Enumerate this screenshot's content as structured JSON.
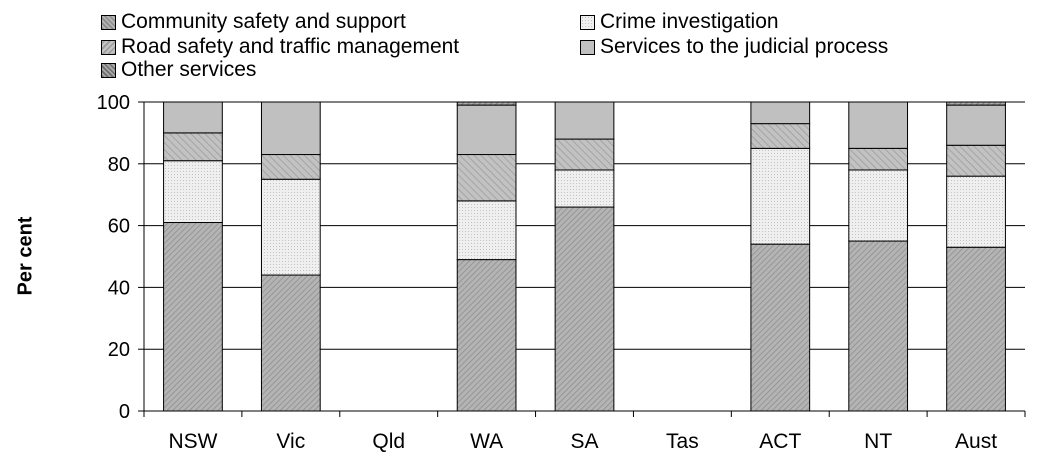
{
  "chart_data": {
    "type": "bar",
    "stacked": true,
    "categories": [
      "NSW",
      "Vic",
      "Qld",
      "WA",
      "SA",
      "Tas",
      "ACT",
      "NT",
      "Aust"
    ],
    "series": [
      {
        "name": "Community safety and support",
        "values": [
          61,
          44,
          null,
          49,
          66,
          null,
          54,
          55,
          53
        ],
        "color": "#b4b4b4",
        "pattern": "diag-dense"
      },
      {
        "name": "Crime investigation",
        "values": [
          20,
          31,
          null,
          19,
          12,
          null,
          31,
          23,
          23
        ],
        "color": "#ececec",
        "pattern": "dots"
      },
      {
        "name": "Road safety and traffic management",
        "values": [
          9,
          8,
          null,
          15,
          10,
          null,
          8,
          7,
          10
        ],
        "color": "#bcbcbc",
        "pattern": "diag-light"
      },
      {
        "name": "Services to the judicial process",
        "values": [
          10,
          17,
          null,
          16,
          12,
          null,
          7,
          15,
          13
        ],
        "color": "#c0c0c0",
        "pattern": "solid"
      },
      {
        "name": "Other services",
        "values": [
          0,
          0,
          null,
          1,
          0,
          null,
          0,
          0,
          1
        ],
        "color": "#a8a8a8",
        "pattern": "diag-dark"
      }
    ],
    "ylabel": "Per cent",
    "xlabel": "",
    "ylim": [
      0,
      100
    ],
    "yticks": [
      0,
      20,
      40,
      60,
      80,
      100
    ],
    "grid": true,
    "legend_position": "top"
  }
}
